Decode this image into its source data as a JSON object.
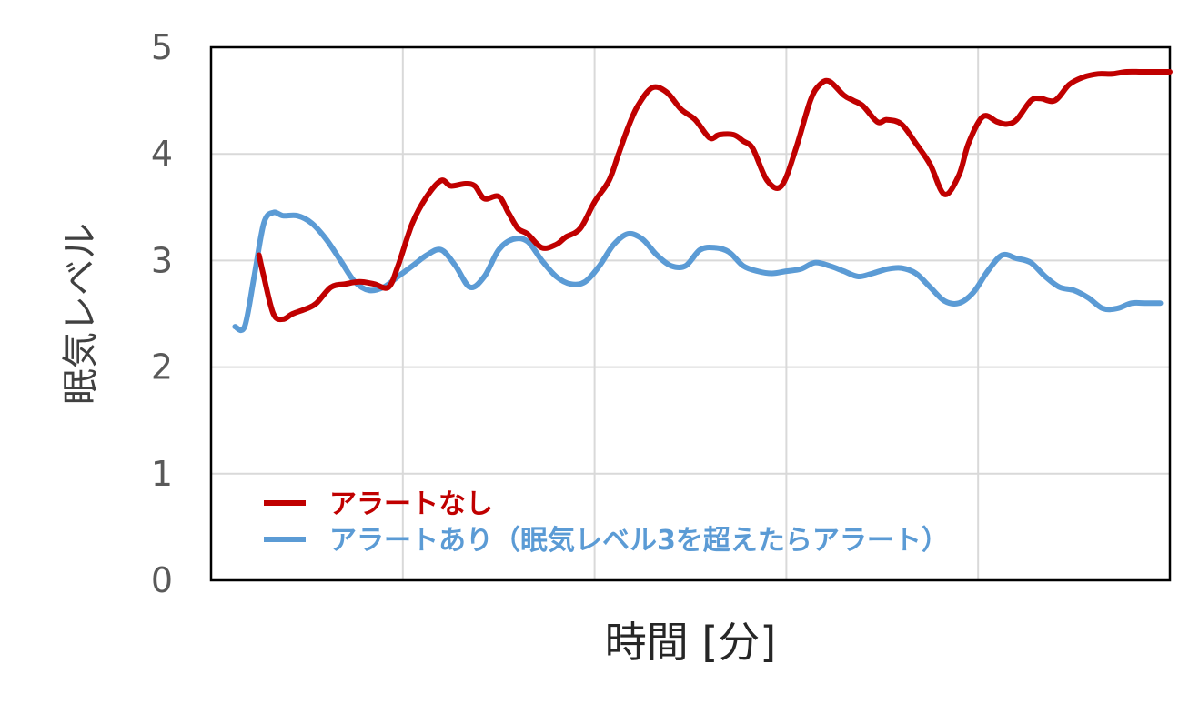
{
  "chart_data": {
    "type": "line",
    "title": "",
    "xlabel": "時間 [分]",
    "ylabel": "眠気レベル",
    "ylim": [
      0,
      5
    ],
    "xlim": [
      0,
      100
    ],
    "y_ticks": [
      "0",
      "1",
      "2",
      "3",
      "4",
      "5"
    ],
    "x_gridlines": 5,
    "grid": true,
    "legend_position": "bottom-left",
    "series": [
      {
        "name": "アラートなし",
        "color": "#C00000",
        "x": [
          5,
          5.5,
          6.5,
          7.5,
          8.5,
          10,
          11,
          12.5,
          14,
          15.5,
          17,
          18.5,
          19.5,
          21,
          22.5,
          24,
          25,
          26.5,
          27.5,
          28.5,
          30,
          31,
          32,
          33,
          34.5,
          36,
          37,
          38.5,
          40,
          41.5,
          42.5,
          43.5,
          44.5,
          46,
          47.5,
          49,
          50.5,
          52,
          53,
          54.5,
          55.5,
          56.5,
          58,
          59.5,
          61,
          62.5,
          63.5,
          64.5,
          66,
          67,
          68,
          69.5,
          70.5,
          72,
          73.5,
          75,
          76.5,
          78,
          79,
          80.5,
          82,
          83,
          84,
          85.5,
          86.5,
          88,
          89.5,
          91,
          92.5,
          94,
          95.5,
          97,
          98.5,
          100
        ],
        "values": [
          3.05,
          2.85,
          2.5,
          2.45,
          2.5,
          2.55,
          2.6,
          2.75,
          2.78,
          2.8,
          2.78,
          2.75,
          2.95,
          3.35,
          3.6,
          3.75,
          3.7,
          3.72,
          3.7,
          3.58,
          3.6,
          3.45,
          3.3,
          3.25,
          3.12,
          3.15,
          3.22,
          3.3,
          3.55,
          3.75,
          4.0,
          4.25,
          4.45,
          4.62,
          4.58,
          4.42,
          4.32,
          4.15,
          4.18,
          4.18,
          4.12,
          4.05,
          3.75,
          3.7,
          4.05,
          4.5,
          4.65,
          4.68,
          4.55,
          4.5,
          4.45,
          4.3,
          4.32,
          4.28,
          4.1,
          3.9,
          3.62,
          3.8,
          4.1,
          4.35,
          4.3,
          4.28,
          4.32,
          4.5,
          4.52,
          4.5,
          4.65,
          4.72,
          4.75,
          4.75,
          4.77,
          4.77,
          4.77,
          4.77
        ]
      },
      {
        "name": "アラートあり（眠気レベル3を超えたらアラート）",
        "color": "#5B9BD5",
        "x": [
          2.5,
          3.5,
          4.5,
          5.5,
          6.5,
          7.5,
          9,
          10.5,
          12,
          13.5,
          15,
          16.5,
          18,
          19.5,
          21,
          22.5,
          24,
          25.5,
          27,
          28.5,
          30,
          31.5,
          33,
          34.5,
          36,
          37.5,
          39,
          40.5,
          42,
          43.5,
          45,
          46.5,
          48,
          49.5,
          51,
          52.5,
          54,
          55.5,
          57,
          58.5,
          60,
          61.5,
          63,
          64.5,
          66,
          67.5,
          69,
          70.5,
          72,
          73.5,
          75,
          76.5,
          78,
          79.5,
          81,
          82.5,
          84,
          85.5,
          87,
          88.5,
          90,
          91.5,
          93,
          94.5,
          96,
          97.5,
          99
        ],
        "values": [
          2.38,
          2.38,
          2.85,
          3.35,
          3.45,
          3.42,
          3.42,
          3.35,
          3.2,
          3.0,
          2.8,
          2.72,
          2.75,
          2.85,
          2.95,
          3.05,
          3.1,
          2.95,
          2.75,
          2.85,
          3.1,
          3.2,
          3.18,
          3.0,
          2.85,
          2.78,
          2.8,
          2.95,
          3.15,
          3.25,
          3.2,
          3.05,
          2.95,
          2.95,
          3.1,
          3.12,
          3.08,
          2.95,
          2.9,
          2.88,
          2.9,
          2.92,
          2.98,
          2.95,
          2.9,
          2.85,
          2.88,
          2.92,
          2.93,
          2.88,
          2.75,
          2.62,
          2.6,
          2.7,
          2.9,
          3.05,
          3.02,
          2.98,
          2.85,
          2.75,
          2.72,
          2.65,
          2.55,
          2.55,
          2.6,
          2.6,
          2.6
        ]
      }
    ]
  }
}
